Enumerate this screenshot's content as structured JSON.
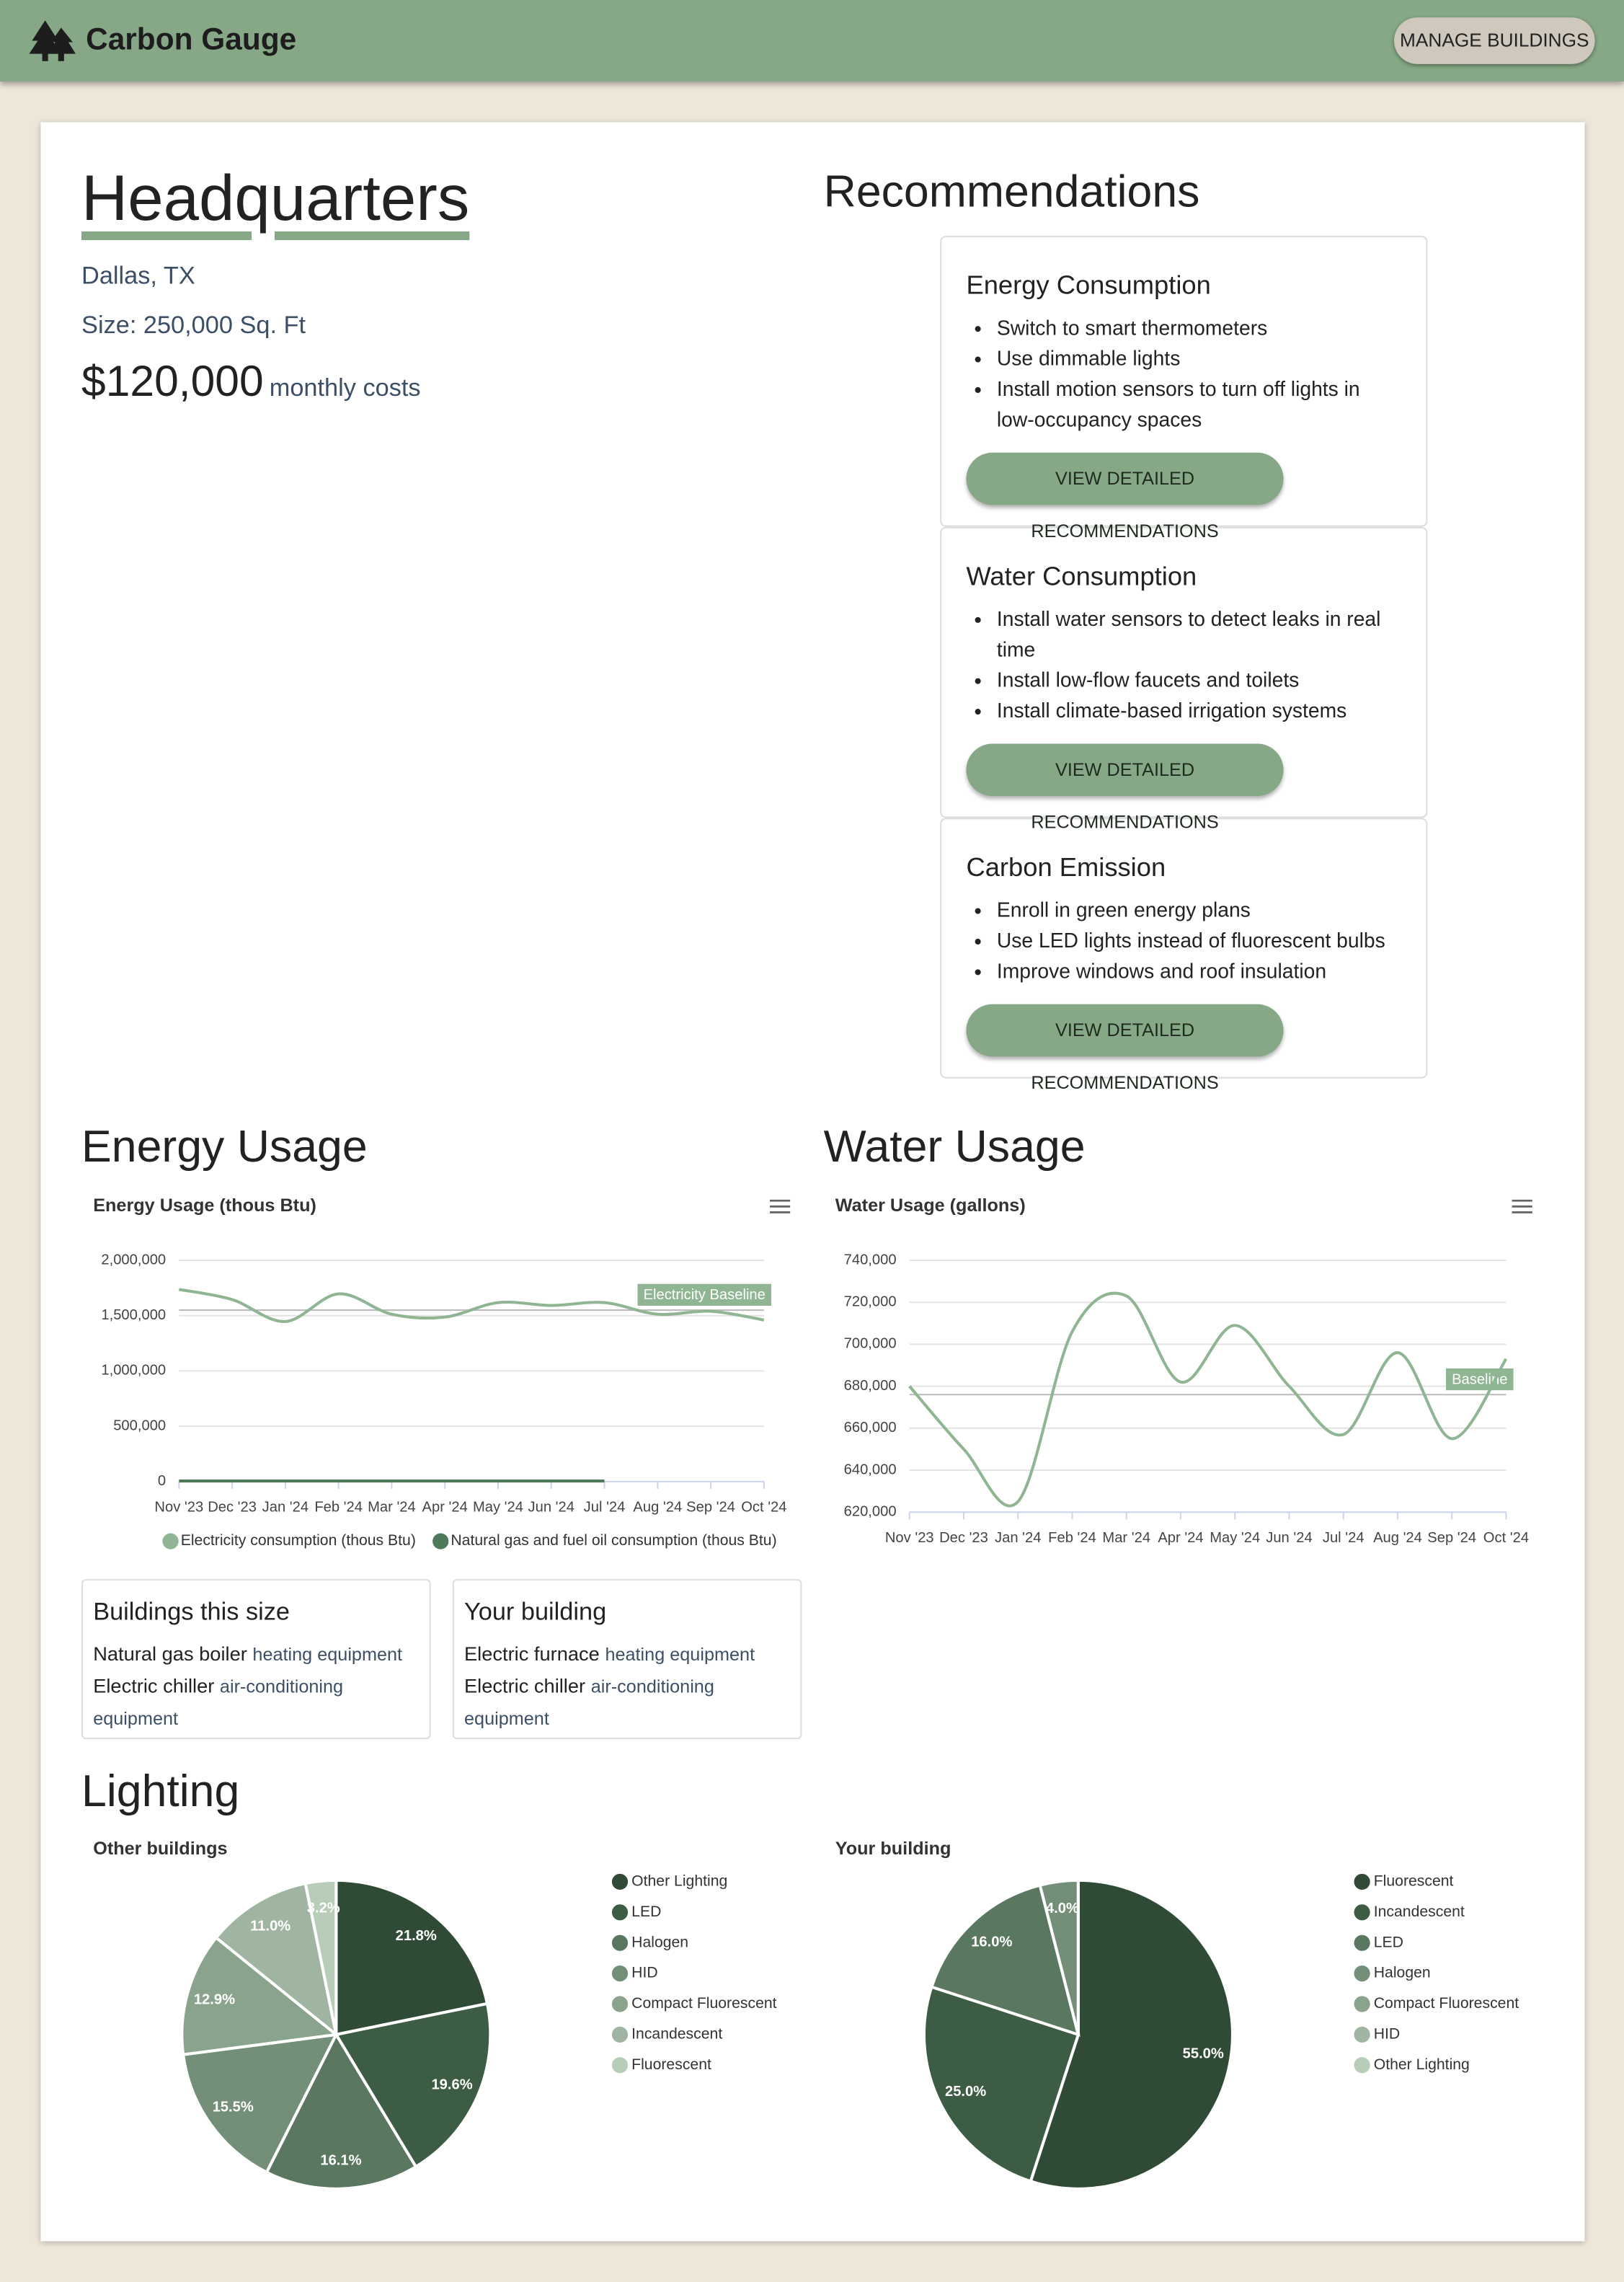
{
  "header": {
    "brand": "Carbon Gauge",
    "button": "MANAGE BUILDINGS"
  },
  "building": {
    "name": "Headquarters",
    "location": "Dallas, TX",
    "size": "Size: 250,000 Sq. Ft",
    "cost": "$120,000",
    "cost_label": "monthly costs"
  },
  "recommendations": {
    "title": "Recommendations",
    "cards": [
      {
        "title": "Energy Consumption",
        "items": [
          "Switch to smart thermometers",
          "Use dimmable lights",
          "Install motion sensors to turn off lights in low-occupancy spaces"
        ],
        "button": "VIEW DETAILED RECOMMENDATIONS"
      },
      {
        "title": "Water Consumption",
        "items": [
          "Install water sensors to detect leaks in real time",
          "Install low-flow faucets and toilets",
          "Install climate-based irrigation systems"
        ],
        "button": "VIEW DETAILED RECOMMENDATIONS"
      },
      {
        "title": "Carbon Emission",
        "items": [
          "Enroll in green energy plans",
          "Use LED lights instead of fluorescent bulbs",
          "Improve windows and roof insulation"
        ],
        "button": "VIEW DETAILED RECOMMENDATIONS"
      }
    ]
  },
  "energy_usage": {
    "heading": "Energy Usage"
  },
  "water_usage": {
    "heading": "Water Usage"
  },
  "equipment": [
    {
      "title": "Buildings this size",
      "items": [
        {
          "name": "Natural gas boiler",
          "type": "heating equipment"
        },
        {
          "name": "Electric chiller",
          "type": "air-conditioning equipment"
        }
      ]
    },
    {
      "title": "Your building",
      "items": [
        {
          "name": "Electric furnace",
          "type": "heating equipment"
        },
        {
          "name": "Electric chiller",
          "type": "air-conditioning equipment"
        }
      ]
    }
  ],
  "lighting": {
    "heading": "Lighting"
  },
  "chart_data": [
    {
      "type": "line",
      "title": "Energy Usage (thous Btu)",
      "categories": [
        "Nov '23",
        "Dec '23",
        "Jan '24",
        "Feb '24",
        "Mar '24",
        "Apr '24",
        "May '24",
        "Jun '24",
        "Jul '24",
        "Aug '24",
        "Sep '24",
        "Oct '24"
      ],
      "series": [
        {
          "name": "Electricity consumption (thous Btu)",
          "color": "#8fb592",
          "values": [
            1737000,
            1645000,
            1447000,
            1697000,
            1513000,
            1487000,
            1618000,
            1592000,
            1618000,
            1513000,
            1540000,
            1461000
          ]
        },
        {
          "name": "Natural gas and fuel oil consumption (thous Btu)",
          "color": "#4e7a5a",
          "values": [
            5000,
            5000,
            5000,
            5000,
            5000,
            5000,
            5000,
            5000,
            5000,
            null,
            null,
            null
          ]
        }
      ],
      "ylim": [
        0,
        2000000
      ],
      "yticks": [
        0,
        {
          "value": 500000,
          "label": "500,000"
        },
        {
          "value": 1000000,
          "label": "1,000,000"
        },
        {
          "value": 1500000,
          "label": "1,500,000"
        },
        {
          "value": 2000000,
          "label": "2,000,000"
        }
      ],
      "plot_lines": [
        {
          "value": 1550000,
          "label": "Electricity Baseline",
          "color": "#8fb592"
        }
      ],
      "grid": true,
      "legend": "bottom"
    },
    {
      "type": "line",
      "title": "Water Usage (gallons)",
      "categories": [
        "Nov '23",
        "Dec '23",
        "Jan '24",
        "Feb '24",
        "Mar '24",
        "Apr '24",
        "May '24",
        "Jun '24",
        "Jul '24",
        "Aug '24",
        "Sep '24",
        "Oct '24"
      ],
      "series": [
        {
          "color": "#8fb592",
          "values": [
            680000,
            650000,
            625000,
            706000,
            723000,
            682000,
            709000,
            680000,
            657000,
            696000,
            655000,
            693000
          ]
        }
      ],
      "ylim": [
        620000,
        740000
      ],
      "yticks": [
        {
          "value": 620000,
          "label": "620,000"
        },
        {
          "value": 640000,
          "label": "640,000"
        },
        {
          "value": 660000,
          "label": "660,000"
        },
        {
          "value": 680000,
          "label": "680,000"
        },
        {
          "value": 700000,
          "label": "700,000"
        },
        {
          "value": 720000,
          "label": "720,000"
        },
        {
          "value": 740000,
          "label": "740,000"
        }
      ],
      "plot_lines": [
        {
          "value": 676000,
          "label": "Baseline",
          "color": "#8fb592"
        }
      ],
      "grid": true,
      "legend": false
    },
    {
      "type": "pie",
      "title": "Other buildings",
      "categories": [
        "Other Lighting",
        "LED",
        "Halogen",
        "HID",
        "Compact Fluorescent",
        "Incandescent",
        "Fluorescent"
      ],
      "values": [
        21.8,
        19.6,
        16.1,
        15.5,
        12.9,
        11.0,
        3.2
      ],
      "value_labels": [
        "21.8%",
        "19.6%",
        "16.1%",
        "15.5%",
        "12.9%",
        "11.0%",
        "3.2%"
      ],
      "colors": [
        "#2f4a35",
        "#3d5c44",
        "#5a775f",
        "#738f78",
        "#8aa38d",
        "#9fb5a1",
        "#b7cdb8"
      ],
      "legend": "right"
    },
    {
      "type": "pie",
      "title": "Your building",
      "categories": [
        "Fluorescent",
        "Incandescent",
        "LED",
        "Halogen",
        "Compact Fluorescent",
        "HID",
        "Other Lighting"
      ],
      "values": [
        55.0,
        25.0,
        16.0,
        4.0,
        0,
        0,
        0
      ],
      "value_labels": [
        "55.0%",
        "25.0%",
        "16.0%",
        "4.0%",
        null,
        null,
        null
      ],
      "colors": [
        "#2f4a35",
        "#3d5c44",
        "#5a775f",
        "#738f78",
        "#8aa38d",
        "#9fb5a1",
        "#b7cdb8"
      ],
      "legend": "right"
    }
  ]
}
